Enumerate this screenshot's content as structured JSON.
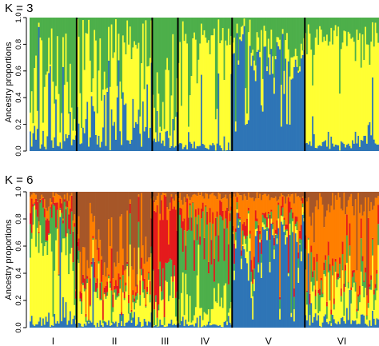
{
  "chart_data": [
    {
      "type": "bar",
      "stacked": true,
      "title": "K = 3",
      "ylabel": "Ancestry proportions",
      "ylim": [
        0,
        1
      ],
      "yticks": [
        "0.0",
        "0.2",
        "0.4",
        "0.6",
        "0.8",
        "1.0"
      ],
      "n_individuals": 245,
      "group_boundaries": [
        33,
        86,
        104,
        142,
        193
      ],
      "component_colors": [
        "#2e75b6",
        "#ffff33",
        "#4daf4a"
      ],
      "groups": [
        {
          "label": "I",
          "n": 33,
          "means": [
            0.08,
            0.4,
            0.52
          ],
          "noise": 0.35
        },
        {
          "label": "II",
          "n": 53,
          "means": [
            0.22,
            0.5,
            0.28
          ],
          "noise": 0.3
        },
        {
          "label": "III",
          "n": 18,
          "means": [
            0.08,
            0.32,
            0.6
          ],
          "noise": 0.3
        },
        {
          "label": "IV",
          "n": 38,
          "means": [
            0.03,
            0.77,
            0.2
          ],
          "noise": 0.18
        },
        {
          "label": "V",
          "n": 51,
          "means": [
            0.68,
            0.1,
            0.22
          ],
          "noise": 0.22
        },
        {
          "label": "VI",
          "n": 52,
          "means": [
            0.05,
            0.8,
            0.15
          ],
          "noise": 0.15
        }
      ]
    },
    {
      "type": "bar",
      "stacked": true,
      "title": "K = 6",
      "ylabel": "Ancestry proportions",
      "ylim": [
        0,
        1
      ],
      "yticks": [
        "0.0",
        "0.2",
        "0.4",
        "0.6",
        "0.8",
        "1.0"
      ],
      "n_individuals": 245,
      "group_boundaries": [
        33,
        86,
        104,
        142,
        193
      ],
      "component_colors": [
        "#2e75b6",
        "#ffff33",
        "#4daf4a",
        "#e41a1c",
        "#ff7f00",
        "#a65628"
      ],
      "groups": [
        {
          "label": "I",
          "n": 33,
          "means": [
            0.05,
            0.55,
            0.22,
            0.08,
            0.05,
            0.05
          ],
          "noise": 0.35
        },
        {
          "label": "II",
          "n": 53,
          "means": [
            0.03,
            0.22,
            0.05,
            0.06,
            0.22,
            0.42
          ],
          "noise": 0.3
        },
        {
          "label": "III",
          "n": 18,
          "means": [
            0.02,
            0.2,
            0.1,
            0.55,
            0.08,
            0.05
          ],
          "noise": 0.3
        },
        {
          "label": "IV",
          "n": 38,
          "means": [
            0.02,
            0.12,
            0.6,
            0.08,
            0.15,
            0.03
          ],
          "noise": 0.25
        },
        {
          "label": "V",
          "n": 51,
          "means": [
            0.62,
            0.05,
            0.05,
            0.05,
            0.2,
            0.03
          ],
          "noise": 0.25
        },
        {
          "label": "VI",
          "n": 52,
          "means": [
            0.05,
            0.18,
            0.08,
            0.04,
            0.55,
            0.1
          ],
          "noise": 0.25
        }
      ]
    }
  ]
}
